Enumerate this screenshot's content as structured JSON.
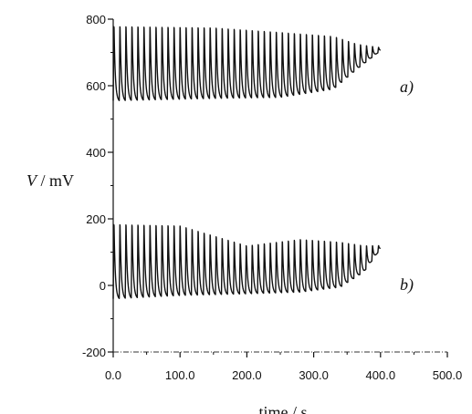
{
  "chart_data": {
    "type": "line",
    "title": "",
    "ylabel_var": "V",
    "ylabel_unit": " / mV",
    "xlabel": "time / s",
    "xlim": [
      0,
      500
    ],
    "ylim": [
      -200,
      800
    ],
    "x_ticks": [
      0,
      100,
      200,
      300,
      400,
      500
    ],
    "x_tick_labels": [
      "0.0",
      "100.0",
      "200.0",
      "300.0",
      "400.0",
      "500.0"
    ],
    "y_ticks": [
      -200,
      0,
      200,
      400,
      600,
      800
    ],
    "y_tick_labels": [
      "-200",
      "0",
      "200",
      "400",
      "600",
      "800"
    ],
    "grid": false,
    "series": [
      {
        "name": "a)",
        "x_range": [
          0,
          400
        ],
        "period": 9.0,
        "amplitude_envelope": [
          {
            "t": 0,
            "min": 555,
            "max": 795
          },
          {
            "t": 150,
            "min": 562,
            "max": 790
          },
          {
            "t": 250,
            "min": 565,
            "max": 775
          },
          {
            "t": 330,
            "min": 590,
            "max": 760
          },
          {
            "t": 365,
            "min": 650,
            "max": 730
          },
          {
            "t": 400,
            "min": 705,
            "max": 715
          }
        ]
      },
      {
        "name": "b)",
        "x_range": [
          0,
          400
        ],
        "period": 9.0,
        "amplitude_envelope": [
          {
            "t": 0,
            "min": -40,
            "max": 200
          },
          {
            "t": 100,
            "min": -30,
            "max": 195
          },
          {
            "t": 200,
            "min": -25,
            "max": 130
          },
          {
            "t": 280,
            "min": -20,
            "max": 150
          },
          {
            "t": 340,
            "min": -5,
            "max": 140
          },
          {
            "t": 375,
            "min": 40,
            "max": 125
          },
          {
            "t": 400,
            "min": 110,
            "max": 120
          }
        ]
      }
    ]
  }
}
